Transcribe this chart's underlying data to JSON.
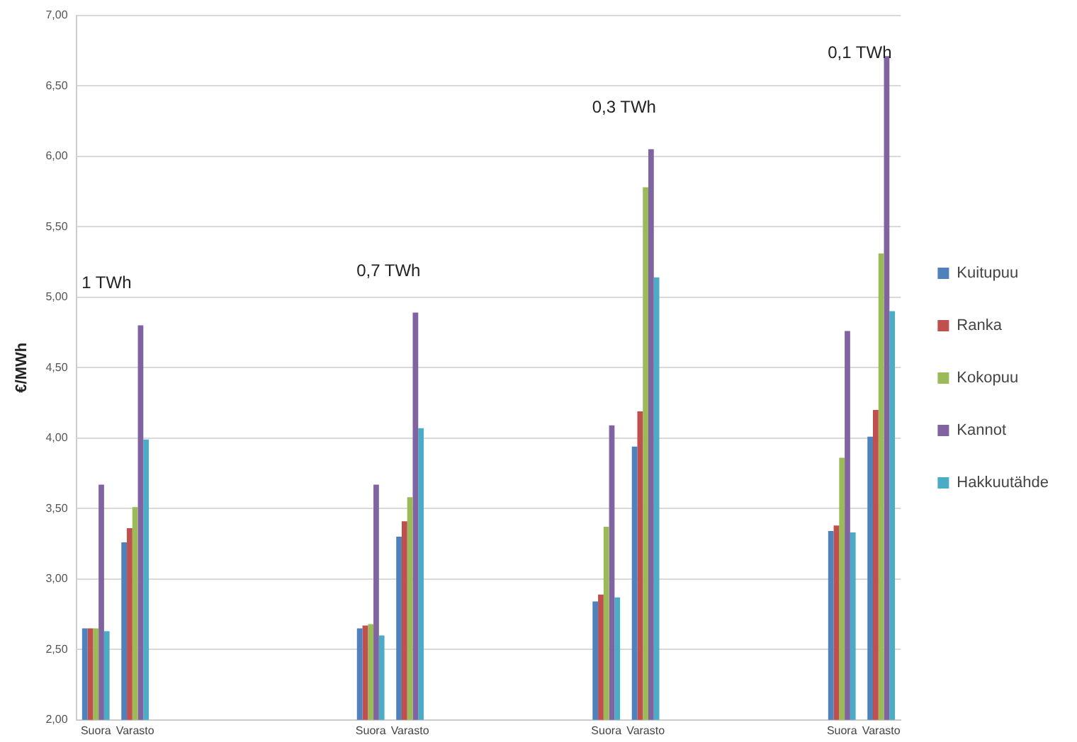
{
  "chart_data": {
    "type": "bar",
    "ylabel": "€/MWh",
    "categories": [
      "Suora",
      "Varasto",
      null,
      null,
      null,
      null,
      null,
      "Suora",
      "Varasto",
      null,
      null,
      null,
      null,
      "Suora",
      "Varasto",
      null,
      null,
      null,
      null,
      "Suora",
      "Varasto"
    ],
    "series": [
      {
        "name": "Kuitupuu",
        "color": "#4f81bd",
        "values": [
          2.65,
          3.26,
          null,
          null,
          null,
          null,
          null,
          2.65,
          3.3,
          null,
          null,
          null,
          null,
          2.84,
          3.94,
          null,
          null,
          null,
          null,
          3.34,
          4.01
        ]
      },
      {
        "name": "Ranka",
        "color": "#c0504d",
        "values": [
          2.65,
          3.36,
          null,
          null,
          null,
          null,
          null,
          2.67,
          3.41,
          null,
          null,
          null,
          null,
          2.89,
          4.19,
          null,
          null,
          null,
          null,
          3.38,
          4.2
        ]
      },
      {
        "name": "Kokopuu",
        "color": "#9bbb59",
        "values": [
          2.65,
          3.51,
          null,
          null,
          null,
          null,
          null,
          2.68,
          3.58,
          null,
          null,
          null,
          null,
          3.37,
          5.78,
          null,
          null,
          null,
          null,
          3.86,
          5.31
        ]
      },
      {
        "name": "Kannot",
        "color": "#8064a2",
        "values": [
          3.67,
          4.8,
          null,
          null,
          null,
          null,
          null,
          3.67,
          4.89,
          null,
          null,
          null,
          null,
          4.09,
          6.05,
          null,
          null,
          null,
          null,
          4.76,
          6.71
        ]
      },
      {
        "name": "Hakkuutähde",
        "color": "#4bacc6",
        "values": [
          2.63,
          3.99,
          null,
          null,
          null,
          null,
          null,
          2.6,
          4.07,
          null,
          null,
          null,
          null,
          2.87,
          5.14,
          null,
          null,
          null,
          null,
          3.33,
          4.9
        ]
      }
    ],
    "ylim": [
      2,
      7
    ],
    "yticks": [
      {
        "value": 2,
        "label": "2,00"
      },
      {
        "value": 2.5,
        "label": "2,50"
      },
      {
        "value": 3,
        "label": "3,00"
      },
      {
        "value": 3.5,
        "label": "3,50"
      },
      {
        "value": 4,
        "label": "4,00"
      },
      {
        "value": 4.5,
        "label": "4,50"
      },
      {
        "value": 5,
        "label": "5,00"
      },
      {
        "value": 5.5,
        "label": "5,50"
      },
      {
        "value": 6,
        "label": "6,00"
      },
      {
        "value": 6.5,
        "label": "6,50"
      },
      {
        "value": 7,
        "label": "7,00"
      }
    ],
    "grid": "y",
    "legend": "right",
    "annotations": [
      "1 TWh",
      "0,7 TWh",
      "0,3 TWh",
      "0,1 TWh"
    ]
  }
}
